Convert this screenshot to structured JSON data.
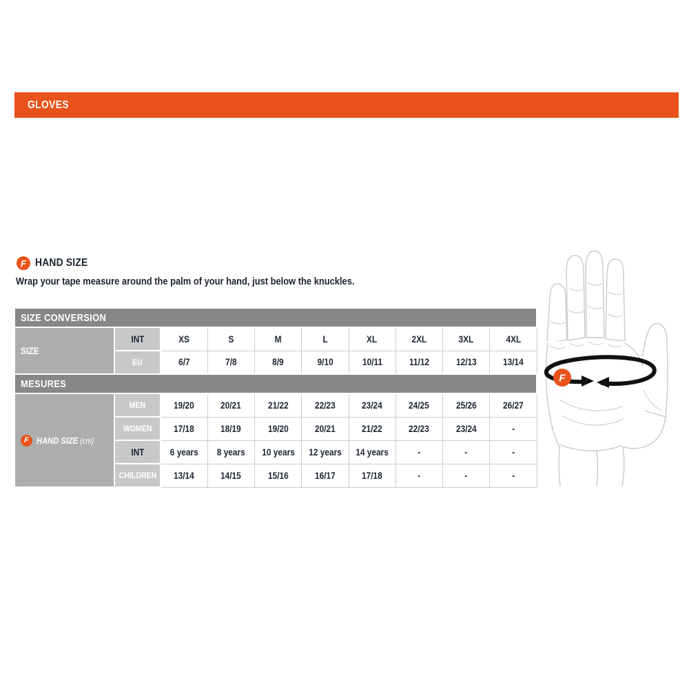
{
  "colors": {
    "accent_orange": "#e8531c",
    "bar_gray": "#878787",
    "group_gray": "#adadad",
    "subcol_gray": "#c8c8c8",
    "text_dark": "#1c2430",
    "cell_border": "#cccccc"
  },
  "gloves_bar": {
    "label": "GLOVES"
  },
  "hand_size_section": {
    "badge": "F",
    "title": "HAND SIZE",
    "instruction": "Wrap your tape measure around the palm of your hand, just below the knuckles."
  },
  "table": {
    "size_conversion_header": "SIZE CONVERSION",
    "mesures_header": "MESURES",
    "size_group_label": "SIZE",
    "measure_group_label": "HAND SIZE",
    "measure_group_unit": "(cm)",
    "measure_group_badge": "F",
    "size_rows": [
      {
        "label": "INT",
        "style": "dark",
        "values": [
          "XS",
          "S",
          "M",
          "L",
          "XL",
          "2XL",
          "3XL",
          "4XL"
        ]
      },
      {
        "label": "EU",
        "style": "light",
        "values": [
          "6/7",
          "7/8",
          "8/9",
          "9/10",
          "10/11",
          "11/12",
          "12/13",
          "13/14"
        ]
      }
    ],
    "measure_rows": [
      {
        "label": "MEN",
        "style": "light",
        "values": [
          "19/20",
          "20/21",
          "21/22",
          "22/23",
          "23/24",
          "24/25",
          "25/26",
          "26/27"
        ]
      },
      {
        "label": "WOMEN",
        "style": "light",
        "values": [
          "17/18",
          "18/19",
          "19/20",
          "20/21",
          "21/22",
          "22/23",
          "23/24",
          "-"
        ]
      },
      {
        "label": "INT",
        "style": "dark",
        "values": [
          "6 years",
          "8 years",
          "10 years",
          "12 years",
          "14 years",
          "-",
          "-",
          "-"
        ]
      },
      {
        "label": "CHILDREN",
        "style": "light",
        "values": [
          "13/14",
          "14/15",
          "15/16",
          "16/17",
          "17/18",
          "-",
          "-",
          "-"
        ]
      }
    ]
  },
  "hand_illustration": {
    "badge": "F"
  }
}
